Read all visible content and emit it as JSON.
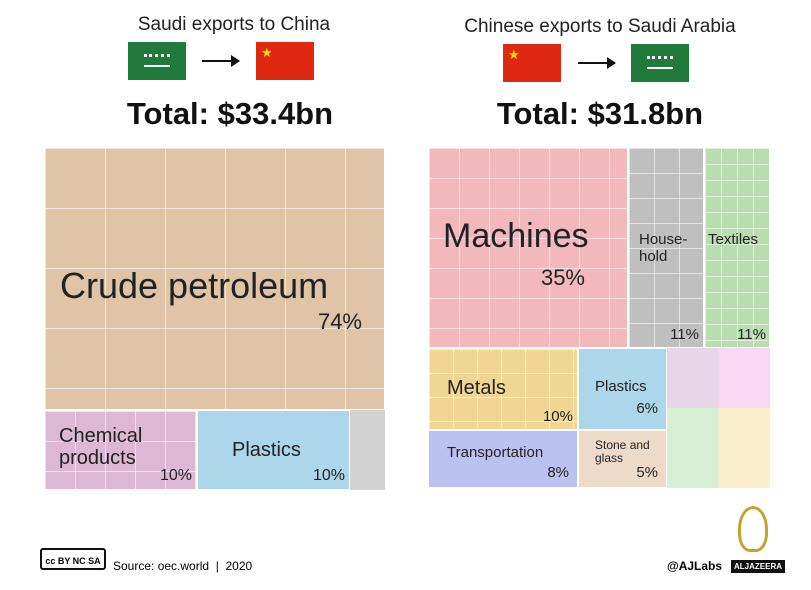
{
  "chart_data": [
    {
      "type": "treemap",
      "title": "Saudi exports to China",
      "subtitle": "Total: $33.4bn",
      "categories": [
        "Crude petroleum",
        "Chemical\nproducts",
        "Plastics"
      ],
      "values": [
        74,
        10,
        10
      ],
      "value_labels": [
        "74%",
        "10%",
        "10%"
      ],
      "colors": [
        "#dfc4a8",
        "#dcb8d4",
        "#acd7ea"
      ]
    },
    {
      "type": "treemap",
      "title": "Chinese exports to Saudi Arabia",
      "subtitle": "Total: $31.8bn",
      "categories": [
        "Machines",
        "House-\nhold",
        "Textiles",
        "Metals",
        "Plastics",
        "Transportation",
        "Stone and\nglass"
      ],
      "values": [
        35,
        11,
        11,
        10,
        6,
        8,
        5
      ],
      "value_labels": [
        "35%",
        "11%",
        "11%",
        "10%",
        "6%",
        "8%",
        "5%"
      ],
      "colors": [
        "#f3b8bc",
        "#bfbfbf",
        "#b9ddb0",
        "#f1d593",
        "#acd7ea",
        "#bac2f2",
        "#eedac9"
      ]
    }
  ],
  "footer": {
    "source": "Source: oec.world  |  2020",
    "credit": "@AJLabs",
    "logo": "ALJAZEERA"
  }
}
